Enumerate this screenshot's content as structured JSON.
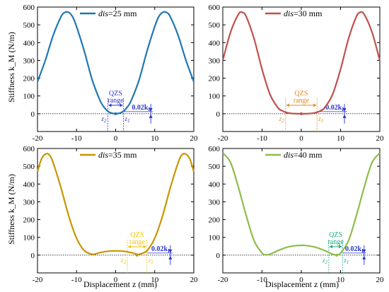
{
  "figure": {
    "ylabel": "Stiffness k_M (N/m)",
    "xlabel": "Displacement z (mm)"
  },
  "chart_data": [
    {
      "type": "line",
      "legend_prefix": "dis",
      "legend_value": "=25 mm",
      "color": "#1f77b4",
      "xlim": [
        -20,
        20
      ],
      "ylim": [
        -100,
        600
      ],
      "xticks": [
        -20,
        -10,
        0,
        10,
        20
      ],
      "yticks": [
        0,
        100,
        200,
        300,
        400,
        500,
        600
      ],
      "x": [
        -20,
        -18,
        -16,
        -14,
        -13,
        -12,
        -11,
        -10,
        -8,
        -6,
        -4,
        -3,
        -2,
        -1,
        0,
        1,
        2,
        3,
        4,
        6,
        8,
        10,
        11,
        12,
        13,
        14,
        16,
        18,
        20
      ],
      "y": [
        180,
        300,
        440,
        545,
        570,
        570,
        545,
        490,
        350,
        190,
        75,
        38,
        14,
        3,
        0,
        3,
        14,
        38,
        75,
        190,
        350,
        490,
        545,
        570,
        570,
        545,
        440,
        300,
        180
      ],
      "qzs_label_1": "QZS",
      "qzs_label_2": "range",
      "qzs_range": [
        -2,
        2
      ],
      "threshold_label": "0.02k",
      "threshold_sub": "I",
      "threshold_x": 9,
      "z2_label": "z",
      "z2_sub": "2",
      "z1_label": "z",
      "z1_sub": "1",
      "accent": "#2b35c8"
    },
    {
      "type": "line",
      "legend_prefix": "dis",
      "legend_value": "=30 mm",
      "color": "#c0504d",
      "xlim": [
        -20,
        20
      ],
      "ylim": [
        -100,
        600
      ],
      "xticks": [
        -20,
        -10,
        0,
        10,
        20
      ],
      "yticks": [
        0,
        100,
        200,
        300,
        400,
        500,
        600
      ],
      "x": [
        -20,
        -18,
        -16,
        -15,
        -14,
        -12,
        -10,
        -8,
        -6,
        -5,
        -4,
        -3,
        -2,
        -1,
        0,
        1,
        2,
        3,
        4,
        5,
        6,
        8,
        10,
        12,
        14,
        15,
        16,
        18,
        20
      ],
      "y": [
        300,
        460,
        560,
        570,
        545,
        420,
        250,
        110,
        35,
        18,
        8,
        3,
        1,
        0,
        0,
        0,
        1,
        3,
        8,
        18,
        35,
        110,
        250,
        420,
        545,
        570,
        560,
        460,
        300
      ],
      "qzs_label_1": "QZS",
      "qzs_label_2": "range",
      "qzs_range": [
        -4,
        4
      ],
      "threshold_label": "0.02k",
      "threshold_sub": "I",
      "threshold_x": 11,
      "z2_label": "z",
      "z2_sub": "2",
      "z1_label": "z",
      "z1_sub": "1",
      "accent": "#e38a1e"
    },
    {
      "type": "line",
      "legend_prefix": "dis",
      "legend_value": "=35 mm",
      "color": "#c89600",
      "xlim": [
        -20,
        20
      ],
      "ylim": [
        -100,
        600
      ],
      "xticks": [
        -20,
        -10,
        0,
        10,
        20
      ],
      "yticks": [
        0,
        100,
        200,
        300,
        400,
        500,
        600
      ],
      "x": [
        -20,
        -19,
        -18,
        -17,
        -16,
        -14,
        -12,
        -10,
        -8,
        -6,
        -5,
        -4,
        -2,
        0,
        2,
        4,
        5,
        6,
        8,
        10,
        12,
        14,
        16,
        17,
        18,
        19,
        20
      ],
      "y": [
        470,
        540,
        568,
        565,
        520,
        380,
        220,
        95,
        25,
        5,
        8,
        14,
        22,
        24,
        22,
        14,
        8,
        5,
        25,
        95,
        220,
        380,
        520,
        565,
        568,
        540,
        470
      ],
      "qzs_label_1": "QZS",
      "qzs_label_2": "range",
      "qzs_range": [
        3,
        8
      ],
      "threshold_label": "0.02k",
      "threshold_sub": "I",
      "threshold_x": 14,
      "z2_label": "z",
      "z2_sub": "2",
      "z1_label": "z",
      "z1_sub": "1",
      "accent": "#f5c400"
    },
    {
      "type": "line",
      "legend_prefix": "dis",
      "legend_value": "=40 mm",
      "color": "#8ebd4b",
      "xlim": [
        -20,
        20
      ],
      "ylim": [
        -100,
        600
      ],
      "xticks": [
        -20,
        -10,
        0,
        10,
        20
      ],
      "yticks": [
        0,
        100,
        200,
        300,
        400,
        500,
        600
      ],
      "x": [
        -20,
        -18,
        -16,
        -14,
        -12,
        -10,
        -9,
        -8,
        -6,
        -4,
        -2,
        0,
        2,
        4,
        6,
        8,
        9,
        10,
        12,
        14,
        16,
        18,
        20
      ],
      "y": [
        575,
        520,
        380,
        220,
        80,
        12,
        2,
        5,
        25,
        42,
        52,
        55,
        52,
        42,
        25,
        5,
        2,
        12,
        80,
        220,
        380,
        520,
        575
      ],
      "qzs_label_1": "QZS",
      "qzs_label_2": "range",
      "qzs_range": [
        7,
        10.5
      ],
      "threshold_label": "0.02k",
      "threshold_sub": "I",
      "threshold_x": 16,
      "z2_label": "z",
      "z2_sub": "2",
      "z1_label": "z",
      "z1_sub": "1",
      "accent": "#19a57e"
    }
  ]
}
